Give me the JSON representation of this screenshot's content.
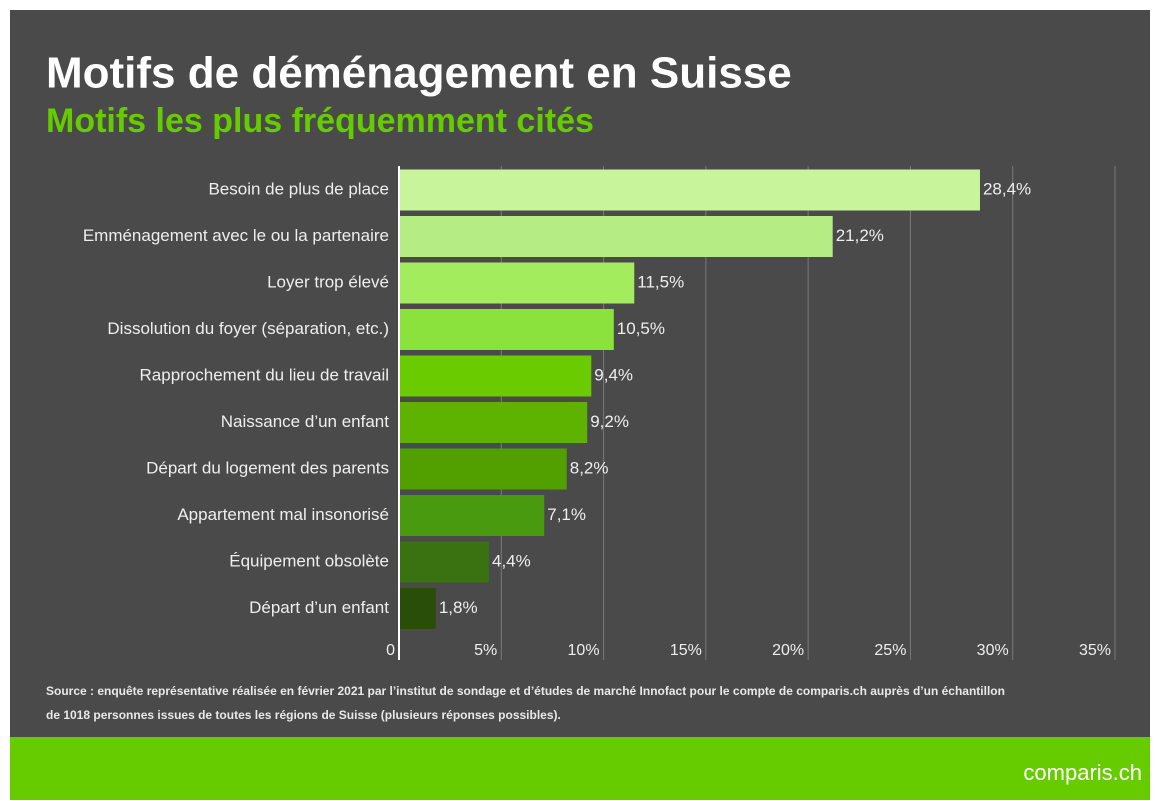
{
  "chart_data": {
    "type": "bar",
    "orientation": "horizontal",
    "title": "Motifs de déménagement en Suisse",
    "subtitle": "Motifs les plus fréquemment cités",
    "categories": [
      "Besoin de plus de place",
      "Emménagement avec le ou la partenaire",
      "Loyer trop élevé",
      "Dissolution du foyer (séparation, etc.)",
      "Rapprochement du lieu de travail",
      "Naissance d’un enfant",
      "Départ du logement des parents",
      "Appartement mal insonorisé",
      "Équipement obsolète",
      "Départ d’un enfant"
    ],
    "values": [
      28.4,
      21.2,
      11.5,
      10.5,
      9.4,
      9.2,
      8.2,
      7.1,
      4.4,
      1.8
    ],
    "value_labels": [
      "28,4%",
      "21,2%",
      "11,5%",
      "10,5%",
      "9,4%",
      "9,2%",
      "8,2%",
      "7,1%",
      "4,4%",
      "1,8%"
    ],
    "colors": [
      "#c8f59c",
      "#b6ec84",
      "#a3ec5e",
      "#8ce23c",
      "#6acb00",
      "#5db300",
      "#52a000",
      "#4a9a10",
      "#3a7212",
      "#284e0a"
    ],
    "xlim": [
      0,
      35
    ],
    "xticks": [
      0,
      {
        "value": 5,
        "label": "5%"
      },
      {
        "value": 10,
        "label": "10%"
      },
      {
        "value": 15,
        "label": "15%"
      },
      {
        "value": 20,
        "label": "20%"
      },
      {
        "value": 25,
        "label": "25%"
      },
      {
        "value": 30,
        "label": "30%"
      },
      {
        "value": 35,
        "label": "35%"
      }
    ],
    "grid": true,
    "source": [
      "Source : enquête représentative réalisée en février 2021 par l’institut de sondage et d’études de marché Innofact pour le compte de comparis.ch auprès d’un échantillon",
      "de 1018 personnes issues de toutes les régions de Suisse (plusieurs réponses possibles)."
    ],
    "brand": "comparis.ch"
  }
}
